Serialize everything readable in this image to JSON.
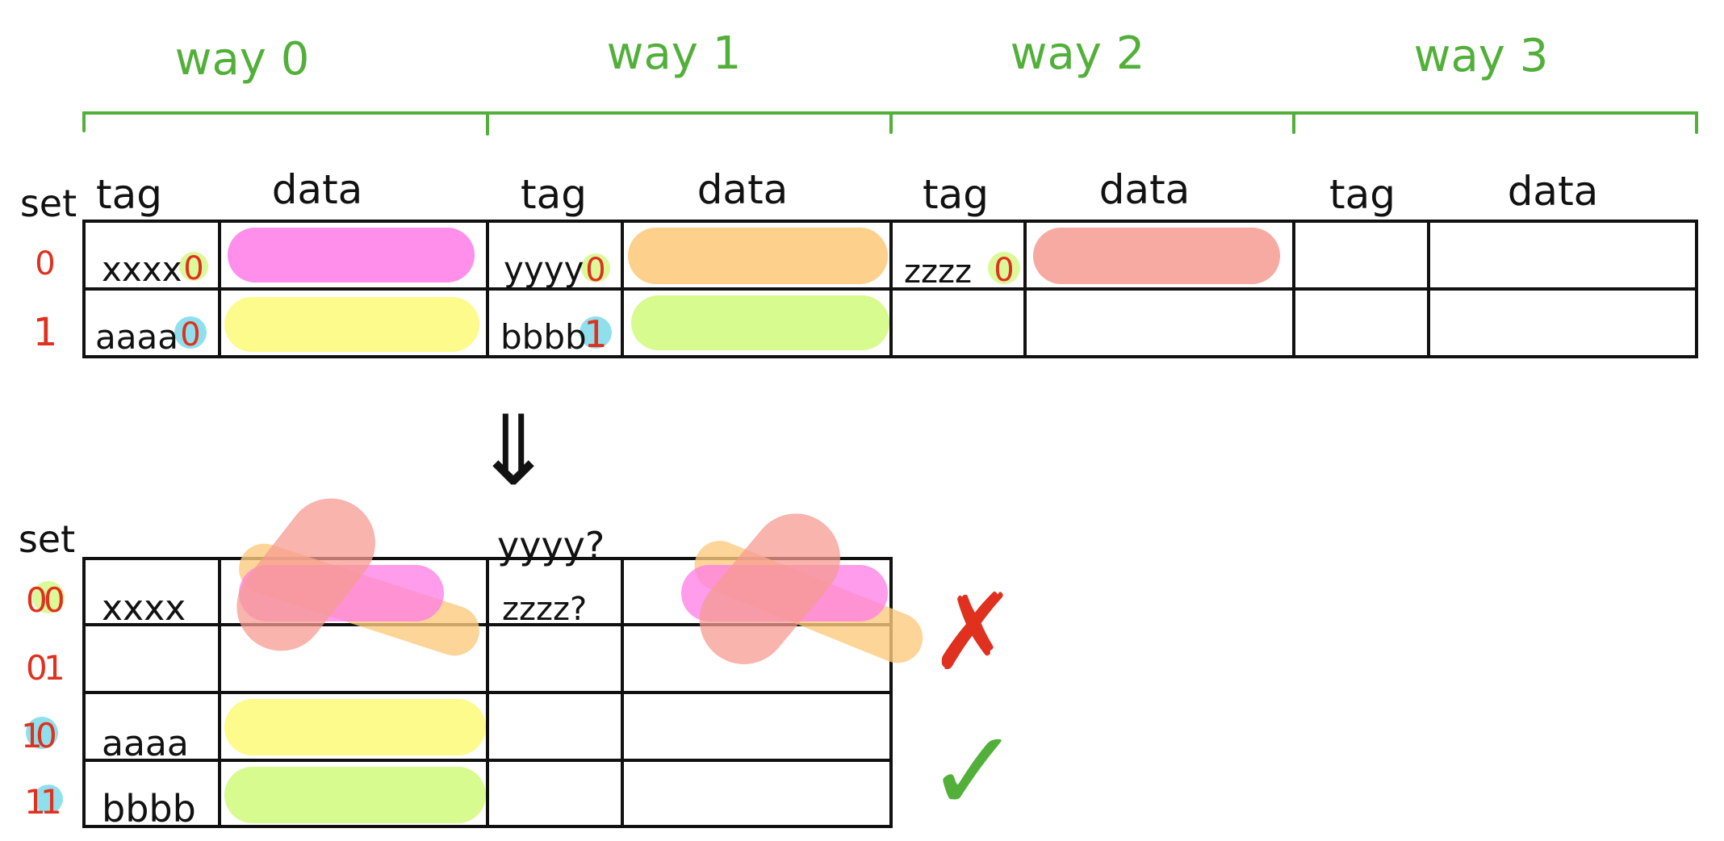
{
  "colors": {
    "ink": "#111111",
    "green": "#52b03a",
    "red": "#e0301e",
    "magenta": "#ff7be6",
    "orange": "#fdcb7e",
    "salmon": "#f59b92",
    "yellow": "#fdfb8c",
    "lime": "#d7fb8e",
    "cyan": "#8fe0ec",
    "lime_dot": "#dcf99a"
  },
  "ways": [
    "way 0",
    "way 1",
    "way 2",
    "way 3"
  ],
  "col_labels": {
    "tag": "tag",
    "data": "data"
  },
  "set_label": "set",
  "top_table": {
    "set_indices": [
      "0",
      "1"
    ],
    "way0": {
      "tag0": "xxxx",
      "idx0": "0",
      "tag1": "aaaa",
      "idx1": "0"
    },
    "way1": {
      "tag0": "yyyy",
      "idx0": "0",
      "tag1": "bbbb",
      "idx1": "1"
    },
    "way2": {
      "tag0": "zzzz",
      "idx0": "0"
    }
  },
  "arrow": "⇓",
  "bottom_table": {
    "set_indices": [
      {
        "hi": "0",
        "lo": "0"
      },
      {
        "hi": "0",
        "lo": "1"
      },
      {
        "hi": "1",
        "lo": "0"
      },
      {
        "hi": "1",
        "lo": "1"
      }
    ],
    "tags": [
      "xxxx",
      "",
      "aaaa",
      "bbbb"
    ],
    "conflict_tags": [
      "yyyy?",
      "zzzz?"
    ]
  },
  "marks": {
    "wrong": "✗",
    "right": "✓"
  }
}
